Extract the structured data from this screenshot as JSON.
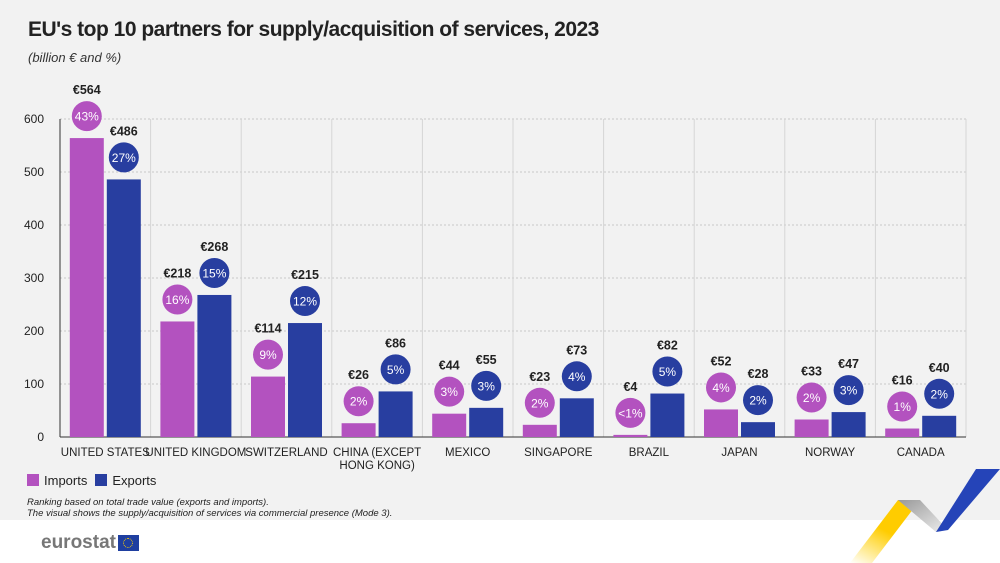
{
  "title": "EU's top 10 partners for supply/acquisition of services, 2023",
  "subtitle": "(billion € and %)",
  "legend": {
    "imports": "Imports",
    "exports": "Exports"
  },
  "notes": [
    "Ranking based on total trade value (exports and imports).",
    "The visual shows the supply/acquisition of services via commercial presence (Mode 3)."
  ],
  "logo": {
    "text": "eurostat"
  },
  "colors": {
    "imports": "#b352bf",
    "exports": "#283ea0",
    "background": "#f2f2f2"
  },
  "chart_data": {
    "type": "bar",
    "title": "EU's top 10 partners for supply/acquisition of services, 2023",
    "ylabel": "billion €",
    "ylim": [
      0,
      600
    ],
    "yticks": [
      0,
      100,
      200,
      300,
      400,
      500,
      600
    ],
    "grid": true,
    "legend_position": "bottom-left",
    "categories": [
      [
        "UNITED STATES"
      ],
      [
        "UNITED KINGDOM"
      ],
      [
        "SWITZERLAND"
      ],
      [
        "CHINA (EXCEPT",
        "HONG KONG)"
      ],
      [
        "MEXICO"
      ],
      [
        "SINGAPORE"
      ],
      [
        "BRAZIL"
      ],
      [
        "JAPAN"
      ],
      [
        "NORWAY"
      ],
      [
        "CANADA"
      ]
    ],
    "series": [
      {
        "name": "Imports",
        "values": [
          564,
          218,
          114,
          26,
          44,
          23,
          4,
          52,
          33,
          16
        ],
        "value_labels": [
          "€564",
          "€218",
          "€114",
          "€26",
          "€44",
          "€23",
          "€4",
          "€52",
          "€33",
          "€16"
        ],
        "shares": [
          "43%",
          "16%",
          "9%",
          "2%",
          "3%",
          "2%",
          "<1%",
          "4%",
          "2%",
          "1%"
        ]
      },
      {
        "name": "Exports",
        "values": [
          486,
          268,
          215,
          86,
          55,
          73,
          82,
          28,
          47,
          40
        ],
        "value_labels": [
          "€486",
          "€268",
          "€215",
          "€86",
          "€55",
          "€73",
          "€82",
          "€28",
          "€47",
          "€40"
        ],
        "shares": [
          "27%",
          "15%",
          "12%",
          "5%",
          "3%",
          "4%",
          "5%",
          "2%",
          "3%",
          "2%"
        ]
      }
    ]
  }
}
